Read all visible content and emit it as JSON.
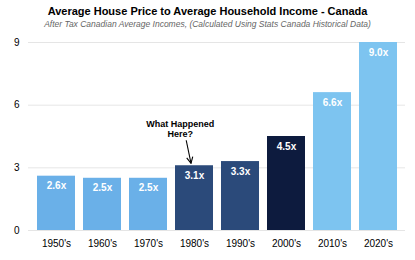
{
  "chart_data": {
    "type": "bar",
    "title": "Average House Price to Average Household Income - Canada",
    "subtitle": "After Tax Canadian Average Incomes, (Calculated Using Stats Canada Historical Data)",
    "categories": [
      "1950's",
      "1960's",
      "1970's",
      "1980's",
      "1990's",
      "2000's",
      "2010's",
      "2020's"
    ],
    "values": [
      2.6,
      2.5,
      2.5,
      3.1,
      3.3,
      4.5,
      6.6,
      9.0
    ],
    "value_labels": [
      "2.6x",
      "2.5x",
      "2.5x",
      "3.1x",
      "3.3x",
      "4.5x",
      "6.6x",
      "9.0x"
    ],
    "data_labels": true,
    "colors": [
      "#6ab0e8",
      "#6ab0e8",
      "#6ab0e8",
      "#2b4a7a",
      "#2b4a7a",
      "#0d1b3e",
      "#7dc4f0",
      "#7dc4f0"
    ],
    "ylim": [
      0,
      9.0
    ],
    "yticks": [
      0,
      3,
      6,
      9
    ],
    "grid": true,
    "annotations": [
      {
        "text": "What Happened\nHere?",
        "x": "1980's",
        "y": 3.1
      }
    ]
  }
}
